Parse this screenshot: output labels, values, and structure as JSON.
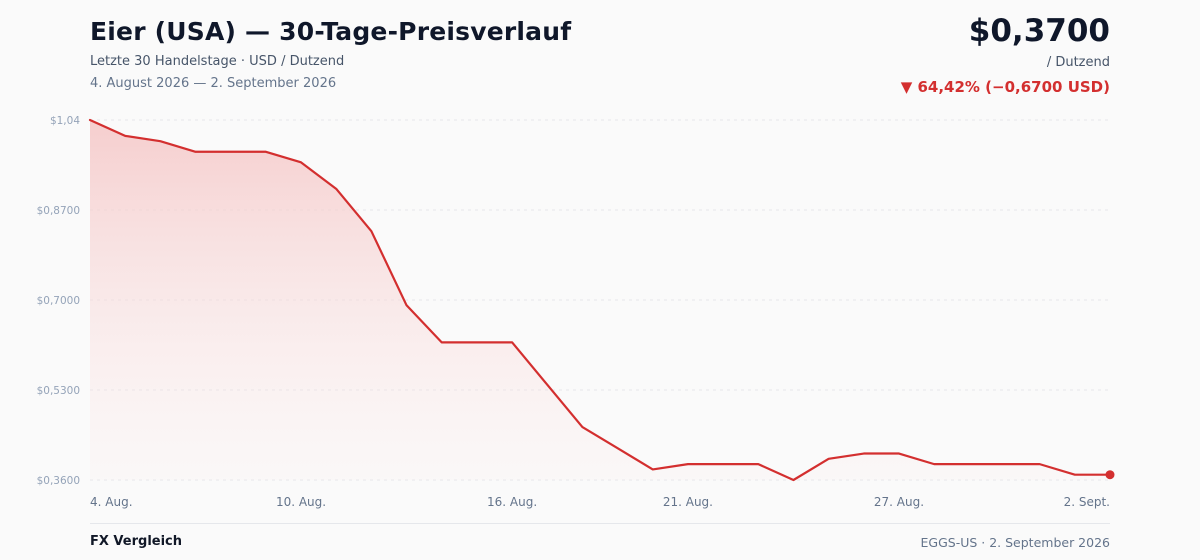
{
  "header": {
    "title": "Eier (USA) — 30-Tage-Preisverlauf",
    "subtitle": "Letzte 30 Handelstage · USD / Dutzend",
    "date_range": "4. August 2026 — 2. September 2026",
    "price": "$0,3700",
    "unit": "/ Dutzend",
    "change": "▼ 64,42% (−0,6700 USD)"
  },
  "footer": {
    "brand": "FX Vergleich",
    "ticker": "EGGS-US · 2. September 2026"
  },
  "colors": {
    "line": "#d32f2f",
    "area": "#f8d4d4",
    "grid": "#e5e7eb"
  },
  "chart_data": {
    "type": "area",
    "title": "Eier (USA) — 30-Tage-Preisverlauf",
    "ylim": [
      0.36,
      1.04
    ],
    "y_ticks": [
      {
        "value": 1.04,
        "label": "$1,04"
      },
      {
        "value": 0.87,
        "label": "$0,8700"
      },
      {
        "value": 0.7,
        "label": "$0,7000"
      },
      {
        "value": 0.53,
        "label": "$0,5300"
      },
      {
        "value": 0.36,
        "label": "$0,3600"
      }
    ],
    "x_ticks": [
      {
        "index": 0,
        "label": "4. Aug."
      },
      {
        "index": 6,
        "label": "10. Aug."
      },
      {
        "index": 12,
        "label": "16. Aug."
      },
      {
        "index": 17,
        "label": "21. Aug."
      },
      {
        "index": 23,
        "label": "27. Aug."
      },
      {
        "index": 29,
        "label": "2. Sept."
      }
    ],
    "grid": true,
    "series": [
      {
        "values": [
          1.04,
          1.01,
          1.0,
          0.98,
          0.98,
          0.98,
          0.96,
          0.91,
          0.83,
          0.69,
          0.62,
          0.62,
          0.62,
          0.54,
          0.46,
          0.42,
          0.38,
          0.39,
          0.39,
          0.39,
          0.36,
          0.4,
          0.41,
          0.41,
          0.39,
          0.39,
          0.39,
          0.39,
          0.37,
          0.37
        ]
      }
    ]
  }
}
